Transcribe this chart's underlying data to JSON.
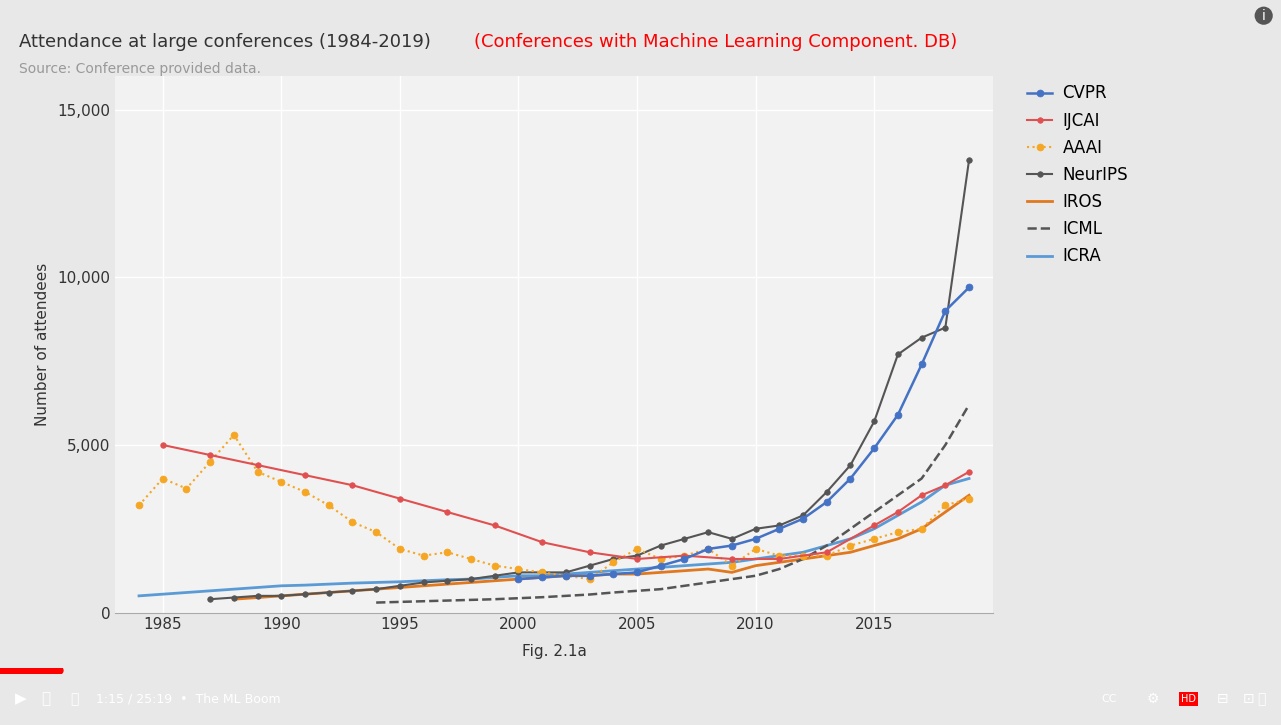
{
  "title": "Attendance at large conferences (1984-2019)",
  "subtitle": "Source: Conference provided data.",
  "red_text": "(Conferences with Machine Learning Component. DB)",
  "xlabel": "Fig. 2.1a",
  "ylabel": "Number of attendees",
  "bg_color": "#e8e8e8",
  "plot_bg_color": "#f2f2f2",
  "ylim": [
    0,
    16000
  ],
  "yticks": [
    0,
    5000,
    10000,
    15000
  ],
  "xlim": [
    1983,
    2020
  ],
  "CVPR": {
    "years": [
      2000,
      2001,
      2002,
      2003,
      2004,
      2005,
      2006,
      2007,
      2008,
      2009,
      2010,
      2011,
      2012,
      2013,
      2014,
      2015,
      2016,
      2017,
      2018,
      2019
    ],
    "values": [
      1000,
      1050,
      1100,
      1100,
      1150,
      1200,
      1400,
      1600,
      1900,
      2000,
      2200,
      2500,
      2800,
      3300,
      4000,
      4900,
      5900,
      7400,
      9000,
      9700
    ],
    "color": "#4472c4",
    "marker": "o",
    "linestyle": "-",
    "linewidth": 1.8,
    "markersize": 5
  },
  "IJCAI": {
    "years": [
      1985,
      1987,
      1989,
      1991,
      1993,
      1995,
      1997,
      1999,
      2001,
      2003,
      2005,
      2007,
      2009,
      2011,
      2013,
      2015,
      2016,
      2017,
      2018,
      2019
    ],
    "values": [
      5000,
      4700,
      4400,
      4100,
      3800,
      3400,
      3000,
      2600,
      2100,
      1800,
      1600,
      1700,
      1600,
      1600,
      1800,
      2600,
      3000,
      3500,
      3800,
      4200
    ],
    "color": "#e05050",
    "marker": "o",
    "linestyle": "-",
    "linewidth": 1.5,
    "markersize": 4
  },
  "AAAI": {
    "years": [
      1984,
      1985,
      1986,
      1987,
      1988,
      1989,
      1990,
      1991,
      1992,
      1993,
      1994,
      1995,
      1996,
      1997,
      1998,
      1999,
      2000,
      2001,
      2002,
      2003,
      2004,
      2005,
      2006,
      2007,
      2008,
      2009,
      2010,
      2011,
      2012,
      2013,
      2014,
      2015,
      2016,
      2017,
      2018,
      2019
    ],
    "values": [
      3200,
      4000,
      3700,
      4500,
      5300,
      4200,
      3900,
      3600,
      3200,
      2700,
      2400,
      1900,
      1700,
      1800,
      1600,
      1400,
      1300,
      1200,
      1100,
      1000,
      1500,
      1900,
      1600,
      1700,
      1900,
      1400,
      1900,
      1700,
      1700,
      1700,
      2000,
      2200,
      2400,
      2500,
      3200,
      3400
    ],
    "color": "#f5a623",
    "marker": "o",
    "linestyle": ":",
    "linewidth": 1.5,
    "markersize": 5
  },
  "NeurIPS": {
    "years": [
      1987,
      1988,
      1989,
      1990,
      1991,
      1992,
      1993,
      1994,
      1995,
      1996,
      1997,
      1998,
      1999,
      2000,
      2001,
      2002,
      2003,
      2004,
      2005,
      2006,
      2007,
      2008,
      2009,
      2010,
      2011,
      2012,
      2013,
      2014,
      2015,
      2016,
      2017,
      2018,
      2019
    ],
    "values": [
      400,
      450,
      500,
      500,
      550,
      600,
      650,
      700,
      800,
      900,
      950,
      1000,
      1100,
      1200,
      1200,
      1200,
      1400,
      1600,
      1700,
      2000,
      2200,
      2400,
      2200,
      2500,
      2600,
      2900,
      3600,
      4400,
      5700,
      7700,
      8200,
      8500,
      13500
    ],
    "color": "#555555",
    "marker": "o",
    "linestyle": "-",
    "linewidth": 1.5,
    "markersize": 4
  },
  "IROS": {
    "years": [
      1988,
      1989,
      1990,
      1991,
      1992,
      1993,
      1994,
      1995,
      1996,
      1997,
      1998,
      1999,
      2000,
      2001,
      2002,
      2003,
      2004,
      2005,
      2006,
      2007,
      2008,
      2009,
      2010,
      2011,
      2012,
      2013,
      2014,
      2015,
      2016,
      2017,
      2018,
      2019
    ],
    "values": [
      400,
      450,
      500,
      550,
      600,
      650,
      700,
      750,
      800,
      850,
      900,
      950,
      1000,
      1050,
      1100,
      1100,
      1150,
      1150,
      1200,
      1250,
      1300,
      1200,
      1400,
      1500,
      1600,
      1700,
      1800,
      2000,
      2200,
      2500,
      3000,
      3500
    ],
    "color": "#e07820",
    "marker": null,
    "linestyle": "-",
    "linewidth": 2.0,
    "markersize": 0
  },
  "ICML": {
    "years": [
      1994,
      1995,
      1996,
      1997,
      1998,
      1999,
      2000,
      2001,
      2002,
      2003,
      2004,
      2005,
      2006,
      2007,
      2008,
      2009,
      2010,
      2011,
      2012,
      2013,
      2014,
      2015,
      2016,
      2017,
      2018,
      2019
    ],
    "values": [
      300,
      320,
      340,
      360,
      380,
      400,
      430,
      460,
      500,
      540,
      600,
      650,
      700,
      800,
      900,
      1000,
      1100,
      1300,
      1600,
      2000,
      2500,
      3000,
      3500,
      4000,
      5000,
      6200
    ],
    "color": "#555555",
    "marker": null,
    "linestyle": "--",
    "linewidth": 1.8,
    "markersize": 0
  },
  "ICRA": {
    "years": [
      1984,
      1985,
      1986,
      1987,
      1988,
      1989,
      1990,
      1991,
      1992,
      1993,
      1994,
      1995,
      1996,
      1997,
      1998,
      1999,
      2000,
      2001,
      2002,
      2003,
      2004,
      2005,
      2006,
      2007,
      2008,
      2009,
      2010,
      2011,
      2012,
      2013,
      2014,
      2015,
      2016,
      2017,
      2018,
      2019
    ],
    "values": [
      500,
      550,
      600,
      650,
      700,
      750,
      800,
      820,
      850,
      880,
      900,
      920,
      950,
      980,
      1000,
      1050,
      1100,
      1100,
      1150,
      1200,
      1250,
      1300,
      1350,
      1400,
      1450,
      1500,
      1600,
      1700,
      1800,
      2000,
      2200,
      2500,
      2900,
      3300,
      3800,
      4000
    ],
    "color": "#5b9bd5",
    "marker": null,
    "linestyle": "-",
    "linewidth": 2.0,
    "markersize": 0
  }
}
